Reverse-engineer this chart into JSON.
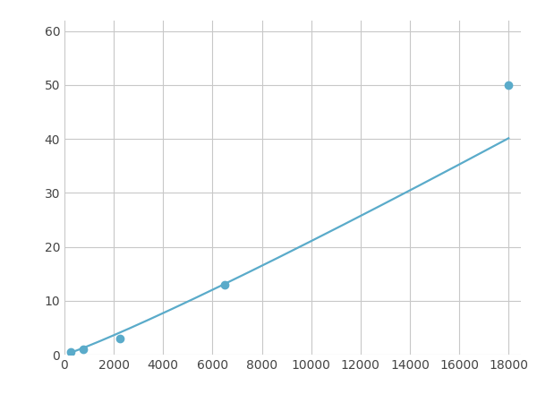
{
  "x": [
    250,
    750,
    2250,
    6500,
    18000
  ],
  "y": [
    0.5,
    1.0,
    3.0,
    13.0,
    50.0
  ],
  "line_color": "#5aabca",
  "xlim": [
    0,
    18500
  ],
  "ylim": [
    0,
    62
  ],
  "xticks": [
    0,
    2000,
    4000,
    6000,
    8000,
    10000,
    12000,
    14000,
    16000,
    18000
  ],
  "yticks": [
    0,
    10,
    20,
    30,
    40,
    50,
    60
  ],
  "grid_color": "#c8c8c8",
  "background_color": "#ffffff",
  "marker_size": 6,
  "line_width": 1.6
}
